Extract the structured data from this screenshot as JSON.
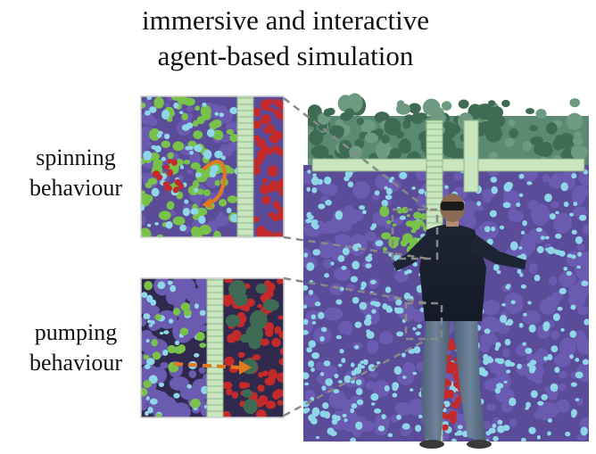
{
  "title": {
    "line1": "immersive and interactive",
    "line2": "agent-based simulation"
  },
  "insets": [
    {
      "label_line1": "spinning",
      "label_line2": "behaviour"
    },
    {
      "label_line1": "pumping",
      "label_line2": "behaviour"
    }
  ],
  "colors": {
    "background": "#ffffff",
    "membrane": "#3f6b55",
    "purple_agents": "#6a5bb0",
    "cyan_agents": "#8fd6e8",
    "red_agents": "#c42a2a",
    "green_agents": "#78c24a",
    "channel": "#c9e6bf",
    "arrow": "#e07a20",
    "dash_line": "#888888"
  }
}
